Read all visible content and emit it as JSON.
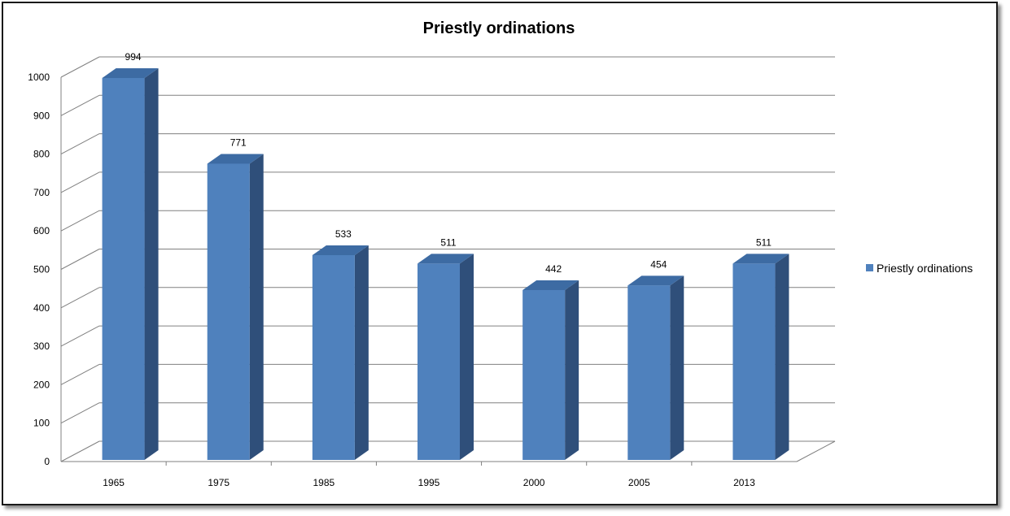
{
  "chart_data": {
    "type": "bar",
    "title": "Priestly ordinations",
    "categories": [
      "1965",
      "1975",
      "1985",
      "1995",
      "2000",
      "2005",
      "2013"
    ],
    "series": [
      {
        "name": "Priestly ordinations",
        "values": [
          994,
          771,
          533,
          511,
          442,
          454,
          511
        ]
      }
    ],
    "ylim": [
      0,
      1000
    ],
    "yticks": [
      0,
      100,
      200,
      300,
      400,
      500,
      600,
      700,
      800,
      900,
      1000
    ],
    "grid": true,
    "legend": "right",
    "data_labels": true,
    "colors": {
      "bar_front": "#4f81bd",
      "bar_side": "#2f4f7a",
      "bar_top": "#3d6ba3",
      "grid": "#808080"
    }
  }
}
